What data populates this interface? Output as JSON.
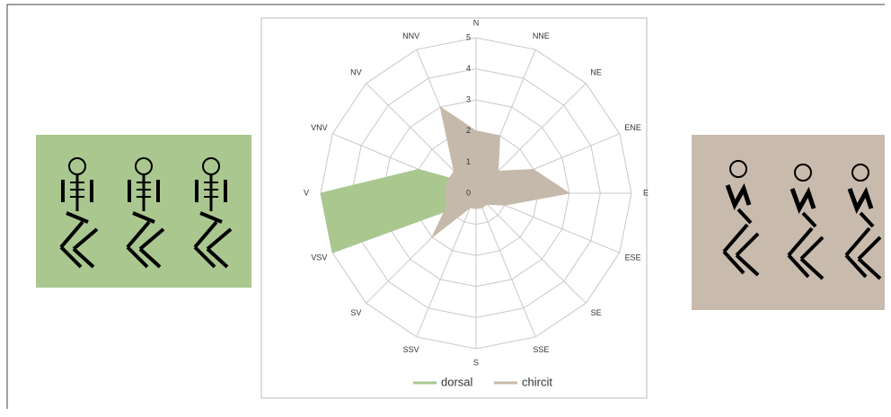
{
  "chart_data": {
    "type": "radar",
    "categories": [
      "N",
      "NNE",
      "NE",
      "ENE",
      "E",
      "ESE",
      "SE",
      "SSE",
      "S",
      "SSV",
      "SV",
      "VSV",
      "V",
      "VNV",
      "NV",
      "NNV"
    ],
    "series": [
      {
        "name": "dorsal",
        "color": "#a9c78f",
        "values": [
          0,
          0,
          0,
          0,
          0,
          0,
          0,
          0,
          0,
          0,
          0.5,
          5,
          5,
          2,
          0.5,
          0
        ]
      },
      {
        "name": "chircit",
        "color": "#c5b9ab",
        "values": [
          2,
          2,
          1,
          2,
          3,
          1,
          0.5,
          0.5,
          0.5,
          0.5,
          2,
          1,
          1,
          1,
          1,
          3
        ]
      }
    ],
    "rlim": [
      0,
      5
    ],
    "rticks": [
      0,
      1,
      2,
      3,
      4,
      5
    ],
    "grid": true
  }
}
